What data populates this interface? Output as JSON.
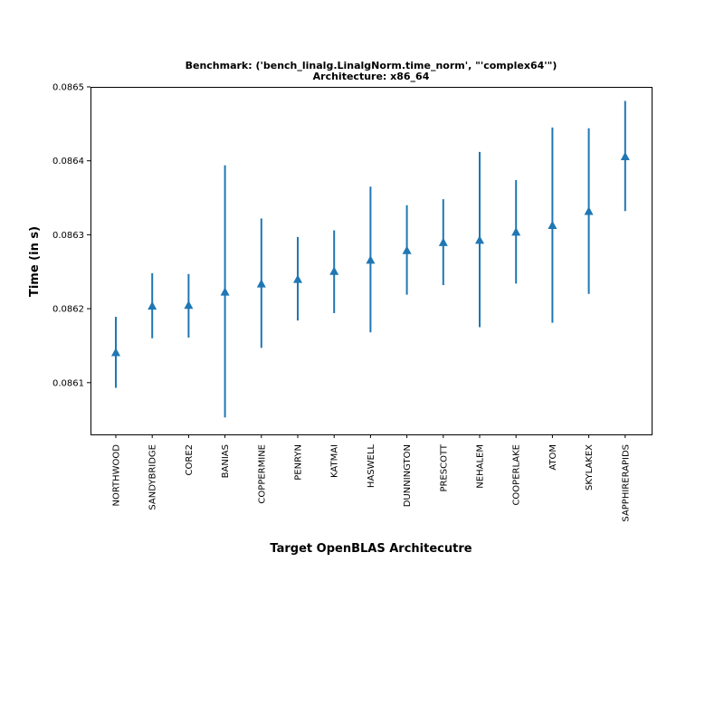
{
  "chart_data": {
    "type": "scatter",
    "title_line1": "Benchmark: ('bench_linalg.LinalgNorm.time_norm', \"'complex64'\")",
    "title_line2": "Architecture: x86_64",
    "xlabel": "Target OpenBLAS Architecutre",
    "ylabel": "Time (in s)",
    "ylim": [
      0.08603,
      0.0865
    ],
    "yticks": [
      0.0861,
      0.0862,
      0.0863,
      0.0864,
      0.0865
    ],
    "ytick_labels": [
      "0.0861",
      "0.0862",
      "0.0863",
      "0.0864",
      "0.0865"
    ],
    "marker": "triangle-up",
    "color": "#1f77b4",
    "grid": false,
    "categories": [
      "NORTHWOOD",
      "SANDYBRIDGE",
      "CORE2",
      "BANIAS",
      "COPPERMINE",
      "PENRYN",
      "KATMAI",
      "HASWELL",
      "DUNNINGTON",
      "PRESCOTT",
      "NEHALEM",
      "COOPERLAKE",
      "ATOM",
      "SKYLAKEX",
      "SAPPHIRERAPIDS"
    ],
    "values": [
      0.086141,
      0.086204,
      0.086205,
      0.086223,
      0.086234,
      0.08624,
      0.086251,
      0.086266,
      0.086279,
      0.08629,
      0.086293,
      0.086304,
      0.086313,
      0.086332,
      0.086406
    ],
    "err_low": [
      0.086093,
      0.08616,
      0.086161,
      0.086053,
      0.086147,
      0.086184,
      0.086194,
      0.086168,
      0.086219,
      0.086232,
      0.086175,
      0.086234,
      0.086181,
      0.08622,
      0.086332
    ],
    "err_high": [
      0.086189,
      0.086248,
      0.086247,
      0.086394,
      0.086322,
      0.086297,
      0.086306,
      0.086365,
      0.08634,
      0.086348,
      0.086412,
      0.086374,
      0.086445,
      0.086444,
      0.086481
    ]
  }
}
